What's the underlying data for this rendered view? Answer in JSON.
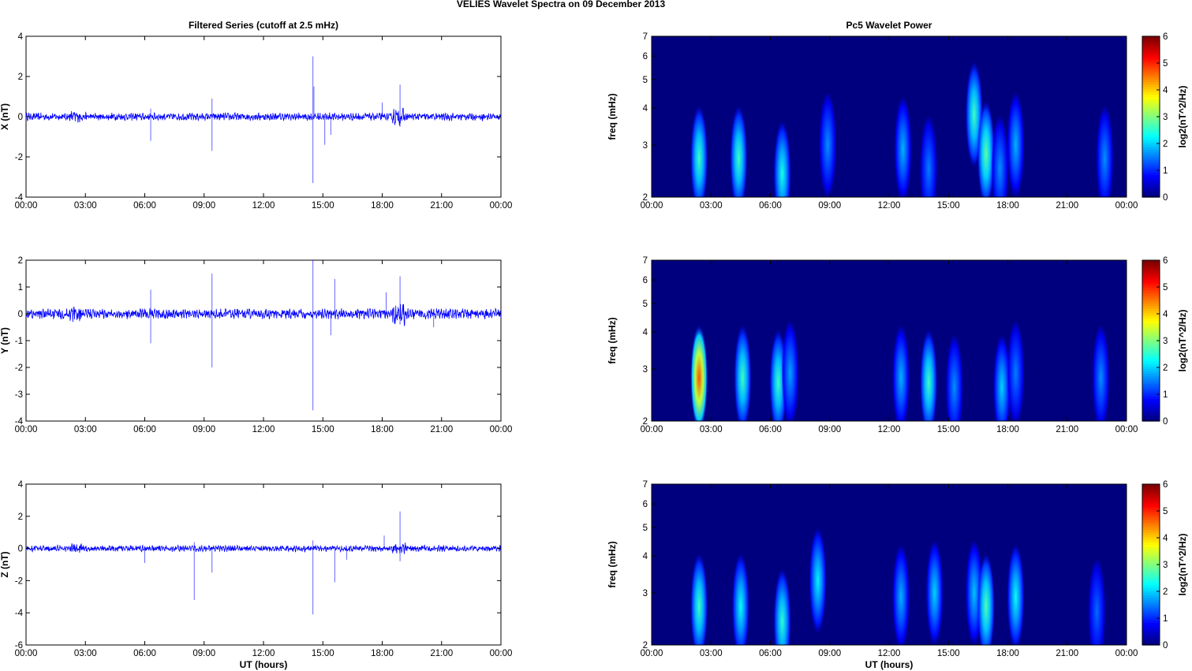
{
  "title": "VELIES Wavelet Spectra on 09 December  2013",
  "left_title": "Filtered Series (cutoff at 2.5 mHz)",
  "right_title": "Pc5 Wavelet Power",
  "x_label": "UT (hours)",
  "x_ticks": [
    "00:00",
    "03:00",
    "06:00",
    "09:00",
    "12:00",
    "15:00",
    "18:00",
    "21:00",
    "00:00"
  ],
  "colors": {
    "series": "#0000ff",
    "background": "#00007f"
  },
  "chart_data": [
    {
      "type": "line",
      "panel": "X",
      "ylabel": "X (nT)",
      "xlabel": "",
      "x_range_hours": [
        0,
        24
      ],
      "ylim": [
        -4,
        4
      ],
      "yticks": [
        -4,
        -2,
        0,
        2,
        4
      ],
      "noise_amplitude": 0.15,
      "spikes": [
        {
          "t": 6.3,
          "v": -1.2
        },
        {
          "t": 6.3,
          "v": 0.4
        },
        {
          "t": 9.4,
          "v": -1.7
        },
        {
          "t": 9.4,
          "v": 0.9
        },
        {
          "t": 14.5,
          "v": 3.0
        },
        {
          "t": 14.5,
          "v": -3.3
        },
        {
          "t": 14.55,
          "v": 1.5
        },
        {
          "t": 15.1,
          "v": -1.4
        },
        {
          "t": 15.4,
          "v": -0.9
        },
        {
          "t": 18.9,
          "v": 1.6
        },
        {
          "t": 18.9,
          "v": -0.5
        },
        {
          "t": 18.0,
          "v": 0.7
        }
      ]
    },
    {
      "type": "line",
      "panel": "Y",
      "ylabel": "Y (nT)",
      "xlabel": "",
      "x_range_hours": [
        0,
        24
      ],
      "ylim": [
        -4,
        2
      ],
      "yticks": [
        -4,
        -3,
        -2,
        -1,
        0,
        1,
        2
      ],
      "noise_amplitude": 0.15,
      "spikes": [
        {
          "t": 6.3,
          "v": -1.1
        },
        {
          "t": 6.3,
          "v": 0.9
        },
        {
          "t": 9.4,
          "v": -2.0
        },
        {
          "t": 9.4,
          "v": 1.5
        },
        {
          "t": 14.5,
          "v": 2.0
        },
        {
          "t": 14.5,
          "v": -3.6
        },
        {
          "t": 15.6,
          "v": 1.3
        },
        {
          "t": 15.4,
          "v": -0.8
        },
        {
          "t": 18.9,
          "v": 1.4
        },
        {
          "t": 18.9,
          "v": -0.4
        },
        {
          "t": 18.2,
          "v": 0.8
        },
        {
          "t": 20.6,
          "v": -0.5
        }
      ]
    },
    {
      "type": "line",
      "panel": "Z",
      "ylabel": "Z (nT)",
      "xlabel": "UT (hours)",
      "x_range_hours": [
        0,
        24
      ],
      "ylim": [
        -6,
        4
      ],
      "yticks": [
        -6,
        -4,
        -2,
        0,
        2,
        4
      ],
      "noise_amplitude": 0.15,
      "spikes": [
        {
          "t": 6.0,
          "v": -0.9
        },
        {
          "t": 8.5,
          "v": -3.2
        },
        {
          "t": 8.5,
          "v": 0.4
        },
        {
          "t": 9.4,
          "v": -1.5
        },
        {
          "t": 14.5,
          "v": -4.1
        },
        {
          "t": 14.5,
          "v": 0.5
        },
        {
          "t": 15.6,
          "v": -2.1
        },
        {
          "t": 16.2,
          "v": -0.7
        },
        {
          "t": 18.9,
          "v": 2.3
        },
        {
          "t": 18.9,
          "v": -0.8
        },
        {
          "t": 18.1,
          "v": 0.8
        }
      ]
    },
    {
      "type": "heatmap",
      "panel": "X",
      "ylabel": "freq (mHz)",
      "xlabel": "",
      "yscale": "log",
      "ylim": [
        2,
        7
      ],
      "yticks": [
        2,
        3,
        4,
        5,
        6,
        7
      ],
      "colorbar_label": "log2(nT^2/Hz)",
      "colorbar_range": [
        0,
        6
      ],
      "colorbar_ticks": [
        0,
        1,
        2,
        3,
        4,
        5,
        6
      ],
      "blobs": [
        {
          "t": 2.4,
          "f": 2.7,
          "level": 2.6
        },
        {
          "t": 4.4,
          "f": 2.7,
          "level": 2.6
        },
        {
          "t": 6.6,
          "f": 2.4,
          "level": 2.4
        },
        {
          "t": 8.9,
          "f": 3.0,
          "level": 1.6
        },
        {
          "t": 12.7,
          "f": 2.9,
          "level": 1.8
        },
        {
          "t": 14.0,
          "f": 2.5,
          "level": 1.5
        },
        {
          "t": 16.3,
          "f": 3.8,
          "level": 2.6
        },
        {
          "t": 16.9,
          "f": 2.8,
          "level": 2.8
        },
        {
          "t": 17.6,
          "f": 2.5,
          "level": 1.6
        },
        {
          "t": 18.4,
          "f": 3.0,
          "level": 1.8
        },
        {
          "t": 22.9,
          "f": 2.7,
          "level": 1.6
        }
      ]
    },
    {
      "type": "heatmap",
      "panel": "Y",
      "ylabel": "freq (mHz)",
      "xlabel": "",
      "yscale": "log",
      "ylim": [
        2,
        7
      ],
      "yticks": [
        2,
        3,
        4,
        5,
        6,
        7
      ],
      "colorbar_label": "log2(nT^2/Hz)",
      "colorbar_range": [
        0,
        6
      ],
      "colorbar_ticks": [
        0,
        1,
        2,
        3,
        4,
        5,
        6
      ],
      "blobs": [
        {
          "t": 2.4,
          "f": 2.8,
          "level": 4.8
        },
        {
          "t": 4.6,
          "f": 2.8,
          "level": 2.6
        },
        {
          "t": 6.4,
          "f": 2.7,
          "level": 2.6
        },
        {
          "t": 7.0,
          "f": 2.9,
          "level": 1.7
        },
        {
          "t": 12.6,
          "f": 2.8,
          "level": 1.8
        },
        {
          "t": 14.0,
          "f": 2.7,
          "level": 2.6
        },
        {
          "t": 15.3,
          "f": 2.6,
          "level": 1.6
        },
        {
          "t": 17.7,
          "f": 2.6,
          "level": 2.0
        },
        {
          "t": 18.4,
          "f": 2.9,
          "level": 1.5
        },
        {
          "t": 22.7,
          "f": 2.8,
          "level": 1.6
        }
      ]
    },
    {
      "type": "heatmap",
      "panel": "Z",
      "ylabel": "freq (mHz)",
      "xlabel": "UT (hours)",
      "yscale": "log",
      "ylim": [
        2,
        7
      ],
      "yticks": [
        2,
        3,
        4,
        5,
        6,
        7
      ],
      "colorbar_label": "log2(nT^2/Hz)",
      "colorbar_range": [
        0,
        6
      ],
      "colorbar_ticks": [
        0,
        1,
        2,
        3,
        4,
        5,
        6
      ],
      "blobs": [
        {
          "t": 2.4,
          "f": 2.7,
          "level": 2.6
        },
        {
          "t": 4.5,
          "f": 2.7,
          "level": 2.3
        },
        {
          "t": 6.6,
          "f": 2.4,
          "level": 2.5
        },
        {
          "t": 8.4,
          "f": 3.3,
          "level": 2.2
        },
        {
          "t": 12.6,
          "f": 2.9,
          "level": 1.8
        },
        {
          "t": 14.3,
          "f": 3.0,
          "level": 2.0
        },
        {
          "t": 16.3,
          "f": 3.0,
          "level": 1.9
        },
        {
          "t": 16.9,
          "f": 2.7,
          "level": 2.7
        },
        {
          "t": 18.4,
          "f": 2.9,
          "level": 2.3
        },
        {
          "t": 22.5,
          "f": 2.6,
          "level": 1.4
        }
      ]
    }
  ]
}
